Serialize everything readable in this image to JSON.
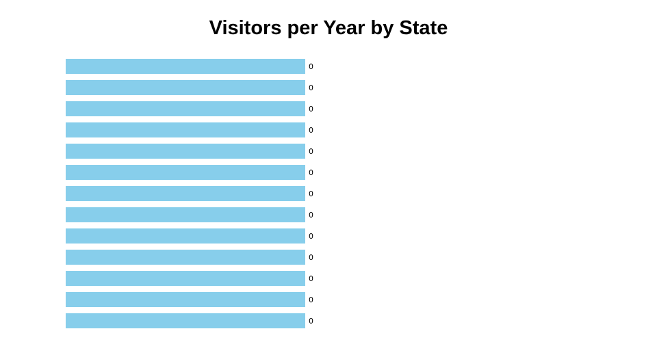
{
  "page": {
    "background_color": "#ffffff"
  },
  "chart_data": {
    "type": "bar",
    "orientation": "horizontal",
    "title": "Visitors per Year by State",
    "xlabel": "",
    "ylabel": "",
    "bar_count": 13,
    "values": [
      0,
      0,
      0,
      0,
      0,
      0,
      0,
      0,
      0,
      0,
      0,
      0,
      0
    ],
    "value_labels": [
      "0",
      "0",
      "0",
      "0",
      "0",
      "0",
      "0",
      "0",
      "0",
      "0",
      "0",
      "0",
      "0"
    ],
    "bar_color": "#87ceeb",
    "title_color": "#000000",
    "value_label_color": "#000000",
    "grid": false,
    "axes_visible": false,
    "category_labels_visible": false,
    "legend": "none",
    "bars_rendered_equal_full_length": true
  }
}
